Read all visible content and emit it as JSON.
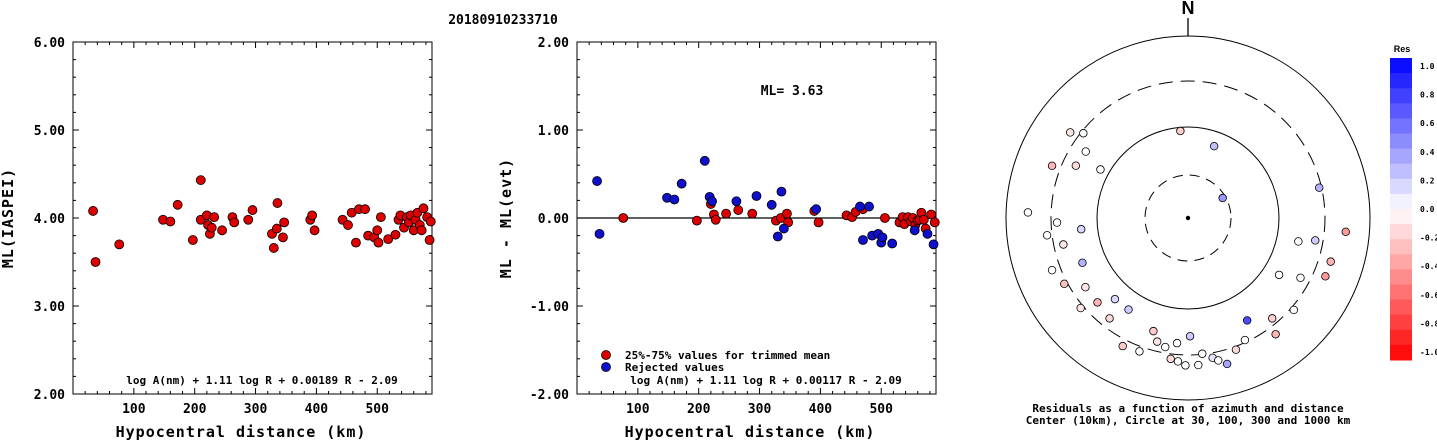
{
  "figure_title": "20180910233710",
  "chart_data": [
    {
      "type": "scatter",
      "id": "ml-vs-distance",
      "xlabel": "Hypocentral distance (km)",
      "ylabel": "ML(IASPEI)",
      "xlim": [
        0,
        590
      ],
      "ylim": [
        2.0,
        6.0
      ],
      "x_ticks": [
        "100",
        "200",
        "300",
        "400",
        "500"
      ],
      "y_ticks": [
        "2.00",
        "3.00",
        "4.00",
        "5.00",
        "6.00"
      ],
      "formula": "log A(nm) + 1.11 log R + 0.00189 R - 2.09",
      "points": [
        [
          33,
          4.08
        ],
        [
          37,
          3.5
        ],
        [
          76,
          3.7
        ],
        [
          148,
          3.98
        ],
        [
          160,
          3.96
        ],
        [
          172,
          4.15
        ],
        [
          197,
          3.75
        ],
        [
          210,
          4.43
        ],
        [
          210,
          3.98
        ],
        [
          220,
          4.03
        ],
        [
          222,
          3.92
        ],
        [
          225,
          3.82
        ],
        [
          228,
          3.89
        ],
        [
          232,
          4.01
        ],
        [
          245,
          3.86
        ],
        [
          262,
          4.01
        ],
        [
          265,
          3.95
        ],
        [
          288,
          3.98
        ],
        [
          295,
          4.09
        ],
        [
          327,
          3.82
        ],
        [
          330,
          3.66
        ],
        [
          335,
          3.88
        ],
        [
          336,
          4.17
        ],
        [
          345,
          3.78
        ],
        [
          347,
          3.95
        ],
        [
          390,
          3.98
        ],
        [
          393,
          4.03
        ],
        [
          397,
          3.86
        ],
        [
          443,
          3.98
        ],
        [
          452,
          3.92
        ],
        [
          458,
          4.06
        ],
        [
          465,
          3.72
        ],
        [
          470,
          4.1
        ],
        [
          480,
          4.1
        ],
        [
          485,
          3.8
        ],
        [
          495,
          3.78
        ],
        [
          500,
          3.86
        ],
        [
          502,
          3.72
        ],
        [
          506,
          4.01
        ],
        [
          518,
          3.76
        ],
        [
          530,
          3.81
        ],
        [
          535,
          3.98
        ],
        [
          538,
          4.03
        ],
        [
          544,
          3.89
        ],
        [
          549,
          4.01
        ],
        [
          552,
          3.95
        ],
        [
          555,
          4.03
        ],
        [
          560,
          3.86
        ],
        [
          563,
          3.98
        ],
        [
          566,
          4.06
        ],
        [
          570,
          3.92
        ],
        [
          573,
          3.86
        ],
        [
          576,
          4.11
        ],
        [
          582,
          4.01
        ],
        [
          586,
          3.75
        ],
        [
          588,
          3.96
        ]
      ]
    },
    {
      "type": "scatter",
      "id": "residual-vs-distance",
      "xlabel": "Hypocentral distance (km)",
      "ylabel": "ML - ML(evt)",
      "xlim": [
        0,
        590
      ],
      "ylim": [
        -2.0,
        2.0
      ],
      "x_ticks": [
        "100",
        "200",
        "300",
        "400",
        "500"
      ],
      "y_ticks": [
        "-2.00",
        "-1.00",
        "0.00",
        "1.00",
        "2.00"
      ],
      "annotation": "ML= 3.63",
      "zero_line": 0.0,
      "legend": [
        {
          "label": "25%-75% values for trimmed mean",
          "color": "#dd0000"
        },
        {
          "label": "Rejected values",
          "color": "#1010cc"
        }
      ],
      "formula": "log A(nm) + 1.11 log R + 0.00117 R - 2.09",
      "series": [
        {
          "name": "25%-75% values for trimmed mean",
          "color": "#dd0000",
          "points": [
            [
              76,
              0.0
            ],
            [
              197,
              -0.03
            ],
            [
              220,
              0.16
            ],
            [
              225,
              0.04
            ],
            [
              228,
              -0.02
            ],
            [
              245,
              0.05
            ],
            [
              265,
              0.09
            ],
            [
              288,
              0.05
            ],
            [
              327,
              -0.03
            ],
            [
              335,
              0.0
            ],
            [
              345,
              0.05
            ],
            [
              347,
              -0.05
            ],
            [
              390,
              0.08
            ],
            [
              397,
              -0.05
            ],
            [
              443,
              0.03
            ],
            [
              452,
              0.01
            ],
            [
              458,
              0.07
            ],
            [
              470,
              0.1
            ],
            [
              506,
              0.0
            ],
            [
              530,
              -0.05
            ],
            [
              535,
              0.01
            ],
            [
              538,
              -0.07
            ],
            [
              544,
              0.01
            ],
            [
              549,
              -0.04
            ],
            [
              552,
              0.0
            ],
            [
              556,
              -0.08
            ],
            [
              560,
              -0.03
            ],
            [
              563,
              -0.02
            ],
            [
              566,
              0.06
            ],
            [
              570,
              -0.02
            ],
            [
              573,
              -0.12
            ],
            [
              582,
              0.04
            ],
            [
              588,
              -0.05
            ]
          ]
        },
        {
          "name": "Rejected values",
          "color": "#1010cc",
          "points": [
            [
              33,
              0.42
            ],
            [
              37,
              -0.18
            ],
            [
              148,
              0.23
            ],
            [
              160,
              0.21
            ],
            [
              172,
              0.39
            ],
            [
              210,
              0.65
            ],
            [
              218,
              0.24
            ],
            [
              222,
              0.19
            ],
            [
              262,
              0.19
            ],
            [
              295,
              0.25
            ],
            [
              320,
              0.15
            ],
            [
              330,
              -0.21
            ],
            [
              336,
              0.3
            ],
            [
              340,
              -0.12
            ],
            [
              393,
              0.1
            ],
            [
              465,
              0.13
            ],
            [
              470,
              -0.25
            ],
            [
              480,
              0.13
            ],
            [
              485,
              -0.2
            ],
            [
              495,
              -0.18
            ],
            [
              500,
              -0.28
            ],
            [
              502,
              -0.22
            ],
            [
              518,
              -0.29
            ],
            [
              555,
              -0.14
            ],
            [
              576,
              -0.18
            ],
            [
              586,
              -0.3
            ]
          ]
        }
      ]
    },
    {
      "type": "polar-scatter",
      "id": "azimuth-residuals",
      "north_label": "N",
      "caption_line1": "Residuals as a function of azimuth and distance",
      "caption_line2": "Center (10km), Circle at 30, 100, 300 and 1000 km",
      "colorbar": {
        "title": "Res",
        "range": [
          -1.0,
          1.0
        ],
        "tick_labels": [
          "1.0",
          "0.8",
          "0.6",
          "0.4",
          "0.2",
          "0.0",
          "-0.2",
          "-0.4",
          "-0.6",
          "-0.8",
          "-1.0"
        ],
        "positive_color": "#0000ee",
        "negative_color": "#ff0000"
      },
      "stations": [
        {
          "az": 20,
          "r": 0.42,
          "res": 0.25
        },
        {
          "az": 355,
          "r": 0.48,
          "res": -0.2
        },
        {
          "az": 291,
          "r": 0.8,
          "res": -0.3
        },
        {
          "az": 295,
          "r": 0.68,
          "res": -0.15
        },
        {
          "az": 299,
          "r": 0.55,
          "res": 0.0
        },
        {
          "az": 303,
          "r": 0.67,
          "res": 0.0
        },
        {
          "az": 306,
          "r": 0.8,
          "res": -0.1
        },
        {
          "az": 309,
          "r": 0.74,
          "res": 0.0
        },
        {
          "az": 272,
          "r": 0.88,
          "res": 0.0
        },
        {
          "az": 268,
          "r": 0.72,
          "res": 0.0
        },
        {
          "az": 263,
          "r": 0.78,
          "res": 0.0
        },
        {
          "az": 264,
          "r": 0.59,
          "res": 0.15
        },
        {
          "az": 258,
          "r": 0.7,
          "res": -0.1
        },
        {
          "az": 249,
          "r": 0.8,
          "res": 0.0
        },
        {
          "az": 247,
          "r": 0.63,
          "res": 0.3
        },
        {
          "az": 242,
          "r": 0.77,
          "res": -0.25
        },
        {
          "az": 236,
          "r": 0.68,
          "res": -0.1
        },
        {
          "az": 230,
          "r": 0.77,
          "res": -0.1
        },
        {
          "az": 227,
          "r": 0.68,
          "res": -0.3
        },
        {
          "az": 222,
          "r": 0.6,
          "res": 0.15
        },
        {
          "az": 218,
          "r": 0.7,
          "res": -0.15
        },
        {
          "az": 213,
          "r": 0.6,
          "res": 0.2
        },
        {
          "az": 207,
          "r": 0.79,
          "res": -0.2
        },
        {
          "az": 200,
          "r": 0.78,
          "res": 0.0
        },
        {
          "az": 197,
          "r": 0.65,
          "res": -0.2
        },
        {
          "az": 194,
          "r": 0.7,
          "res": -0.1
        },
        {
          "az": 190,
          "r": 0.72,
          "res": 0.0
        },
        {
          "az": 187,
          "r": 0.78,
          "res": -0.15
        },
        {
          "az": 185,
          "r": 0.69,
          "res": 0.0
        },
        {
          "az": 184,
          "r": 0.79,
          "res": 0.0
        },
        {
          "az": 181,
          "r": 0.81,
          "res": 0.0
        },
        {
          "az": 179,
          "r": 0.65,
          "res": 0.2
        },
        {
          "az": 176,
          "r": 0.81,
          "res": 0.0
        },
        {
          "az": 174,
          "r": 0.75,
          "res": 0.0
        },
        {
          "az": 170,
          "r": 0.78,
          "res": 0.1
        },
        {
          "az": 168,
          "r": 0.8,
          "res": 0.0
        },
        {
          "az": 165,
          "r": 0.83,
          "res": 0.35
        },
        {
          "az": 160,
          "r": 0.77,
          "res": -0.15
        },
        {
          "az": 155,
          "r": 0.74,
          "res": 0.0
        },
        {
          "az": 150,
          "r": 0.65,
          "res": 0.7
        },
        {
          "az": 143,
          "r": 0.8,
          "res": -0.3
        },
        {
          "az": 140,
          "r": 0.72,
          "res": -0.2
        },
        {
          "az": 131,
          "r": 0.77,
          "res": 0.0
        },
        {
          "az": 122,
          "r": 0.59,
          "res": 0.0
        },
        {
          "az": 118,
          "r": 0.7,
          "res": 0.0
        },
        {
          "az": 113,
          "r": 0.82,
          "res": -0.4
        },
        {
          "az": 107,
          "r": 0.82,
          "res": -0.3
        },
        {
          "az": 102,
          "r": 0.62,
          "res": 0.0
        },
        {
          "az": 100,
          "r": 0.71,
          "res": 0.2
        },
        {
          "az": 95,
          "r": 0.87,
          "res": -0.4
        },
        {
          "az": 77,
          "r": 0.74,
          "res": 0.3
        },
        {
          "az": 60,
          "r": 0.22,
          "res": 0.4
        }
      ]
    }
  ]
}
